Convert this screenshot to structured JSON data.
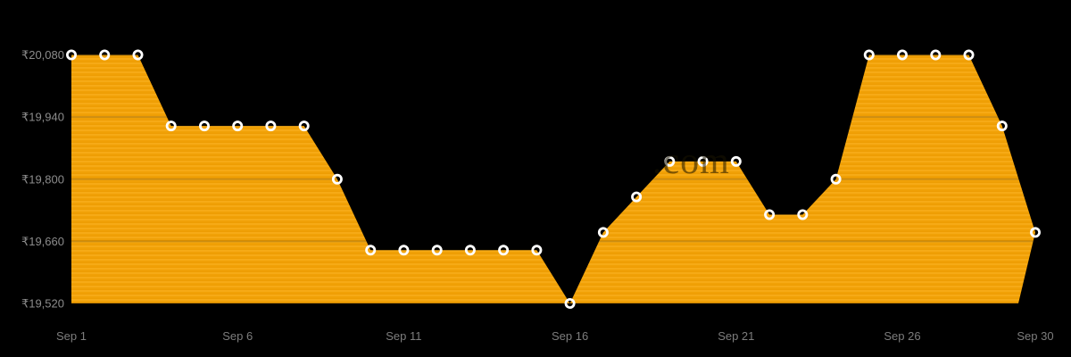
{
  "watermark": ".com",
  "colors": {
    "background": "#000000",
    "area_fill": "#F1A107",
    "area_fill_light_stripe": "#F6AA16",
    "area_fill_dark_stripe": "#EE9D03",
    "marker_stroke": "#FFFFFF",
    "gridline_over_fill": "rgba(0,0,0,0.17)",
    "y_axis_text": "#8C8C8C",
    "x_axis_text": "#7D7D7D"
  },
  "chart_data": {
    "type": "area",
    "title": "",
    "xlabel": "",
    "ylabel": "",
    "currency": "₹",
    "legend": "none",
    "grid": "horizontal, visible only over filled area",
    "x_tick_labels": [
      "Sep 1",
      "Sep 6",
      "Sep 11",
      "Sep 16",
      "Sep 21",
      "Sep 26",
      "Sep 30"
    ],
    "x_tick_days": [
      1,
      6,
      11,
      16,
      21,
      26,
      30
    ],
    "y_tick_labels": [
      "₹20,080",
      "₹19,940",
      "₹19,800",
      "₹19,660",
      "₹19,520"
    ],
    "y_tick_values": [
      20080,
      19940,
      19800,
      19660,
      19520
    ],
    "ylim": [
      19520,
      20080
    ],
    "x_days": [
      1,
      2,
      3,
      4,
      5,
      6,
      7,
      8,
      9,
      10,
      11,
      12,
      13,
      14,
      15,
      16,
      17,
      18,
      19,
      20,
      21,
      22,
      23,
      24,
      25,
      26,
      27,
      28,
      29,
      30
    ],
    "x_day_labels": [
      "Sep 1",
      "Sep 2",
      "Sep 3",
      "Sep 4",
      "Sep 5",
      "Sep 6",
      "Sep 7",
      "Sep 8",
      "Sep 9",
      "Sep 10",
      "Sep 11",
      "Sep 12",
      "Sep 13",
      "Sep 14",
      "Sep 15",
      "Sep 16",
      "Sep 17",
      "Sep 18",
      "Sep 19",
      "Sep 20",
      "Sep 21",
      "Sep 22",
      "Sep 23",
      "Sep 24",
      "Sep 25",
      "Sep 26",
      "Sep 27",
      "Sep 28",
      "Sep 29",
      "Sep 30"
    ],
    "values": [
      20080,
      20080,
      20080,
      19920,
      19920,
      19920,
      19920,
      19920,
      19800,
      19640,
      19640,
      19640,
      19640,
      19640,
      19640,
      19520,
      19680,
      19760,
      19840,
      19840,
      19840,
      19720,
      19720,
      19800,
      20080,
      20080,
      20080,
      20080,
      19920,
      19680
    ]
  }
}
